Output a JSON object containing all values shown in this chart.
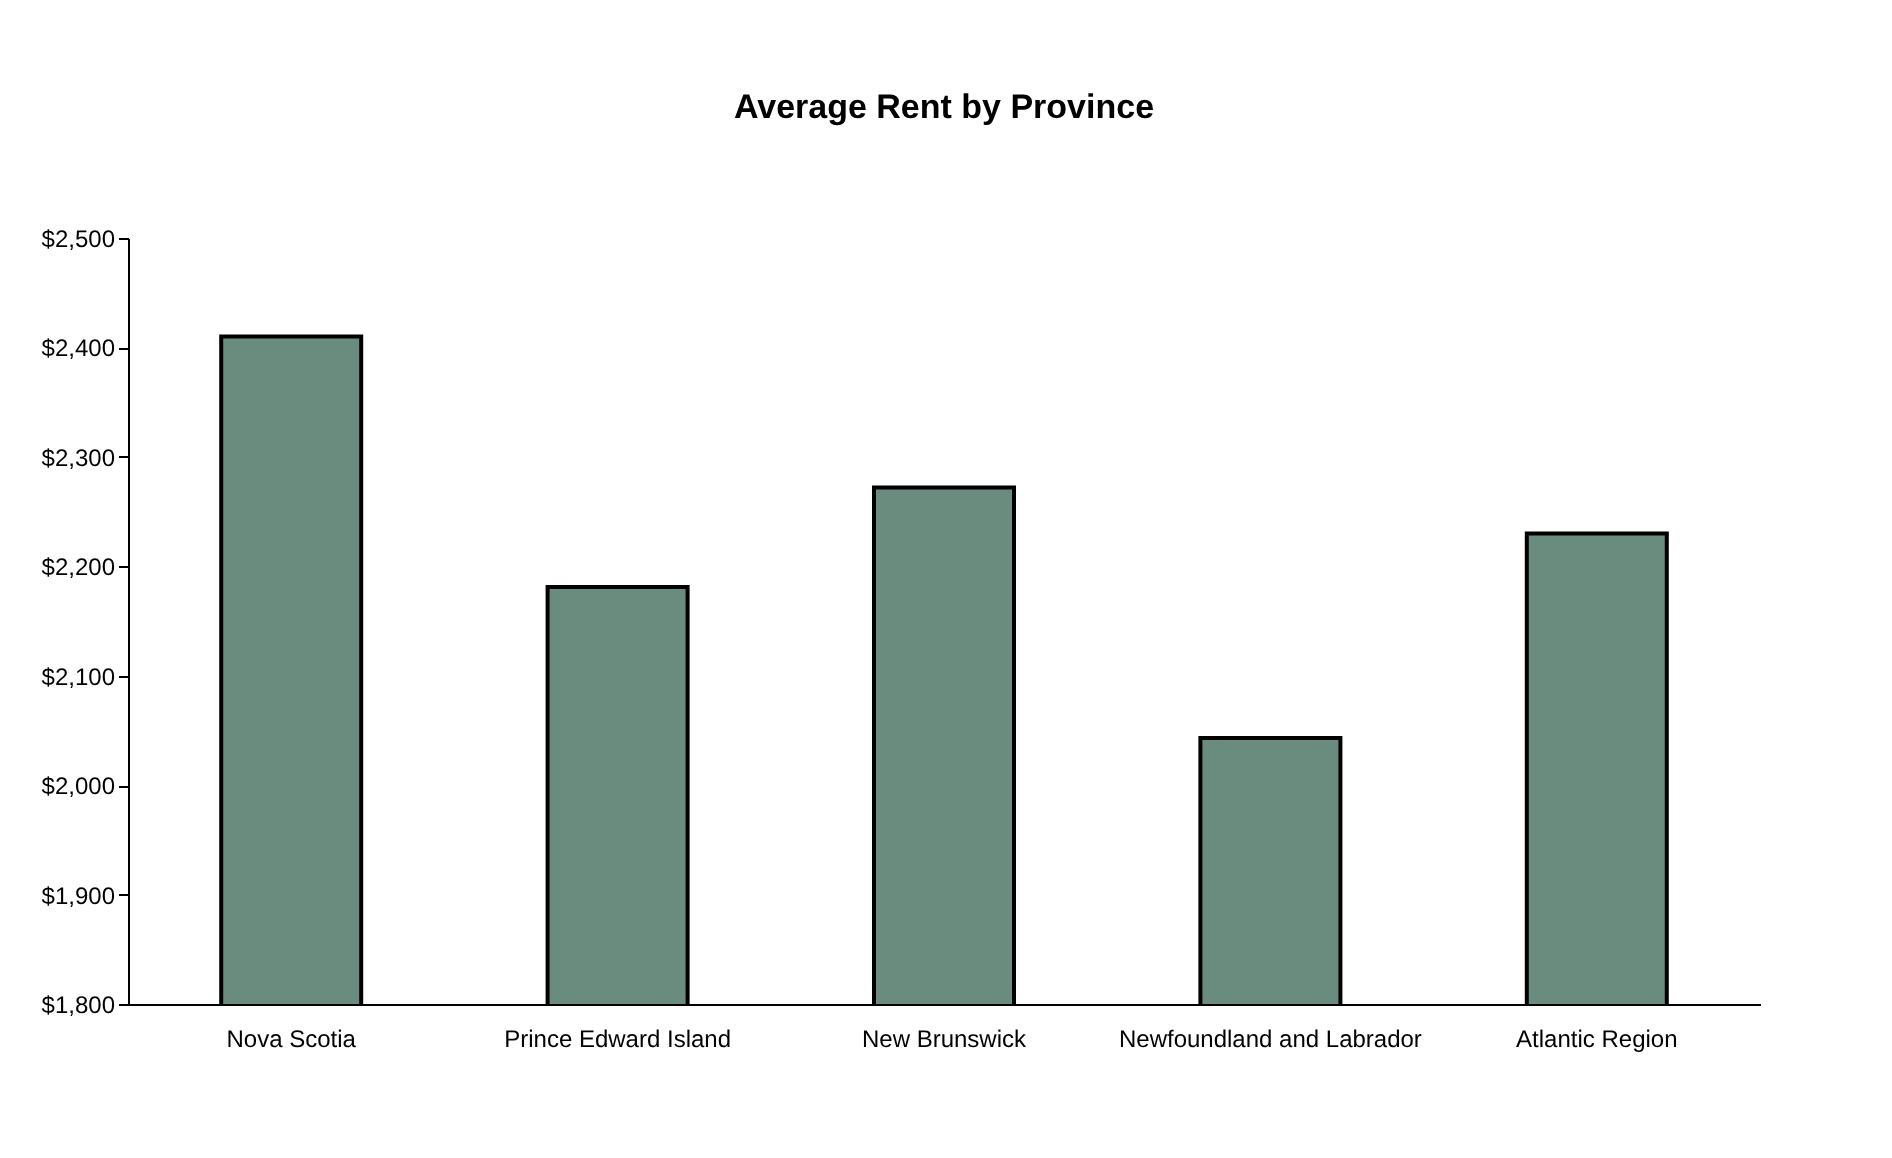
{
  "chart_data": {
    "type": "bar",
    "title": "Average Rent by Province",
    "categories": [
      "Nova Scotia",
      "Prince Edward Island",
      "New Brunswick",
      "Newfoundland and Labrador",
      "Atlantic Region"
    ],
    "values": [
      2410,
      2181,
      2272,
      2043,
      2230
    ],
    "color": "#6a8c7e",
    "ylim": [
      1800,
      2500
    ],
    "yticks": [
      {
        "value": 1800,
        "label": "$1,800"
      },
      {
        "value": 1900,
        "label": "$1,900"
      },
      {
        "value": 2000,
        "label": "$2,000"
      },
      {
        "value": 2100,
        "label": "$2,100"
      },
      {
        "value": 2200,
        "label": "$2,200"
      },
      {
        "value": 2300,
        "label": "$2,300"
      },
      {
        "value": 2400,
        "label": "$2,400"
      },
      {
        "value": 2500,
        "label": "$2,500"
      }
    ],
    "grid": false
  }
}
